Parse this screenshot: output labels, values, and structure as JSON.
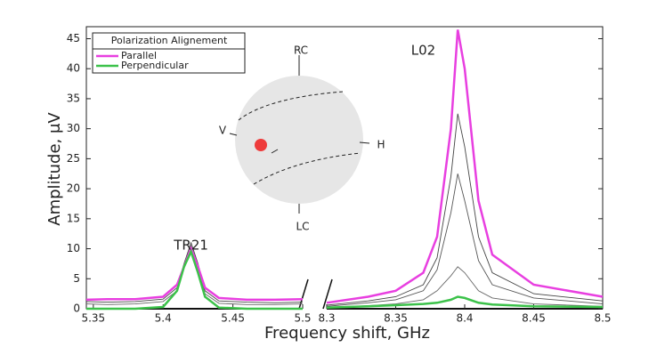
{
  "chart_data": [
    {
      "type": "line",
      "y_label": "Amplitude, μV",
      "x_label": "Frequency shift, GHz",
      "ylim": [
        0,
        47
      ],
      "yticks": [
        0,
        5,
        10,
        15,
        20,
        25,
        30,
        35,
        40,
        45
      ],
      "xlim": [
        5.345,
        5.5
      ],
      "xticks": [
        5.35,
        5.4,
        5.45,
        5.5
      ],
      "legend": {
        "title": "Polarization Alignement",
        "position": "upper left"
      },
      "annotations": [
        {
          "text": "TR21",
          "x": 5.42,
          "y": 10.5
        }
      ],
      "x": [
        5.345,
        5.36,
        5.38,
        5.4,
        5.41,
        5.415,
        5.42,
        5.425,
        5.43,
        5.44,
        5.46,
        5.48,
        5.5
      ],
      "series": [
        {
          "color": "#444444",
          "values": [
            1.2,
            1.1,
            1.2,
            1.6,
            3.5,
            7.5,
            11,
            7.5,
            3,
            1.3,
            1.1,
            1.0,
            1.1
          ]
        },
        {
          "color": "#666666",
          "values": [
            0.8,
            0.7,
            0.8,
            1.2,
            3,
            7,
            10.5,
            7,
            2.5,
            0.9,
            0.7,
            0.7,
            0.8
          ]
        },
        {
          "name": "Parallel",
          "color": "#e83fe0",
          "values": [
            1.5,
            1.6,
            1.6,
            2,
            4,
            7,
            10,
            7,
            3.5,
            1.8,
            1.5,
            1.5,
            1.6
          ]
        },
        {
          "name": "Perpendicular",
          "color": "#3cc24a",
          "values": [
            0,
            0,
            0,
            0.3,
            3,
            7,
            9.5,
            6,
            2,
            0.2,
            0,
            0,
            0
          ]
        }
      ]
    },
    {
      "type": "line",
      "xlim": [
        8.3,
        8.5
      ],
      "xticks": [
        8.3,
        8.35,
        8.4,
        8.45,
        8.5
      ],
      "annotations": [
        {
          "text": "L02",
          "x": 8.37,
          "y": 43
        }
      ],
      "inset": {
        "labels": [
          "RC",
          "LC",
          "V",
          "H"
        ]
      },
      "x": [
        8.3,
        8.33,
        8.35,
        8.37,
        8.38,
        8.39,
        8.395,
        8.4,
        8.41,
        8.42,
        8.45,
        8.5
      ],
      "series": [
        {
          "color": "#444444",
          "values": [
            0.6,
            1.3,
            2,
            4,
            8.5,
            22,
            32.5,
            27,
            12,
            6,
            2.5,
            1.3
          ]
        },
        {
          "color": "#555555",
          "values": [
            0.4,
            1,
            1.5,
            3,
            6.5,
            16,
            22.5,
            18,
            8,
            4,
            1.8,
            0.8
          ]
        },
        {
          "color": "#666666",
          "values": [
            0.2,
            0.5,
            0.8,
            1.5,
            3,
            5.5,
            7,
            6,
            3,
            1.8,
            0.8,
            0.4
          ]
        },
        {
          "color": "#e83fe0",
          "values": [
            1,
            2,
            3,
            6,
            12,
            30,
            46.5,
            40,
            18,
            9,
            4,
            2
          ]
        },
        {
          "color": "#3cc24a",
          "values": [
            0.2,
            0.4,
            0.6,
            0.8,
            1,
            1.5,
            2,
            1.8,
            1,
            0.7,
            0.4,
            0.3
          ]
        }
      ]
    }
  ]
}
